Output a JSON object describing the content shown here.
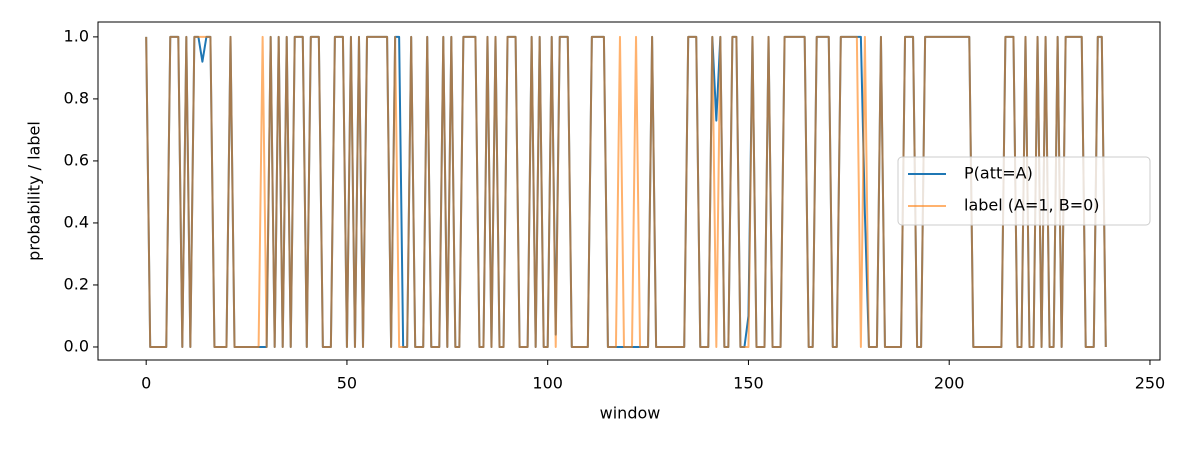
{
  "chart_data": {
    "type": "line",
    "xlabel": "window",
    "ylabel": "probability / label",
    "x": [
      0,
      1,
      2,
      3,
      4,
      5,
      6,
      7,
      8,
      9,
      10,
      11,
      12,
      13,
      14,
      15,
      16,
      17,
      18,
      19,
      20,
      21,
      22,
      23,
      24,
      25,
      26,
      27,
      28,
      29,
      30,
      31,
      32,
      33,
      34,
      35,
      36,
      37,
      38,
      39,
      40,
      41,
      42,
      43,
      44,
      45,
      46,
      47,
      48,
      49,
      50,
      51,
      52,
      53,
      54,
      55,
      56,
      57,
      58,
      59,
      60,
      61,
      62,
      63,
      64,
      65,
      66,
      67,
      68,
      69,
      70,
      71,
      72,
      73,
      74,
      75,
      76,
      77,
      78,
      79,
      80,
      81,
      82,
      83,
      84,
      85,
      86,
      87,
      88,
      89,
      90,
      91,
      92,
      93,
      94,
      95,
      96,
      97,
      98,
      99,
      100,
      101,
      102,
      103,
      104,
      105,
      106,
      107,
      108,
      109,
      110,
      111,
      112,
      113,
      114,
      115,
      116,
      117,
      118,
      119,
      120,
      121,
      122,
      123,
      124,
      125,
      126,
      127,
      128,
      129,
      130,
      131,
      132,
      133,
      134,
      135,
      136,
      137,
      138,
      139,
      140,
      141,
      142,
      143,
      144,
      145,
      146,
      147,
      148,
      149,
      150,
      151,
      152,
      153,
      154,
      155,
      156,
      157,
      158,
      159,
      160,
      161,
      162,
      163,
      164,
      165,
      166,
      167,
      168,
      169,
      170,
      171,
      172,
      173,
      174,
      175,
      176,
      177,
      178,
      179,
      180,
      181,
      182,
      183,
      184,
      185,
      186,
      187,
      188,
      189,
      190,
      191,
      192,
      193,
      194,
      195,
      196,
      197,
      198,
      199,
      200,
      201,
      202,
      203,
      204,
      205,
      206,
      207,
      208,
      209,
      210,
      211,
      212,
      213,
      214,
      215,
      216,
      217,
      218,
      219,
      220,
      221,
      222,
      223,
      224,
      225,
      226,
      227,
      228,
      229,
      230,
      231,
      232,
      233,
      234,
      235,
      236,
      237,
      238,
      239
    ],
    "series": [
      {
        "name": "P(att=A)",
        "color": "#1f77b4",
        "opacity": 1,
        "values": [
          1,
          0,
          0,
          0,
          0,
          0,
          1,
          1,
          1,
          0,
          1,
          0,
          1,
          1,
          0.92,
          1,
          1,
          0,
          0,
          0,
          0,
          1,
          0,
          0,
          0,
          0,
          0,
          0,
          0,
          0,
          0,
          1,
          0,
          1,
          0,
          1,
          0,
          1,
          1,
          1,
          0,
          1,
          1,
          1,
          0,
          0,
          0,
          1,
          1,
          1,
          0,
          1,
          0,
          1,
          0,
          1,
          1,
          1,
          1,
          1,
          1,
          0,
          1,
          1,
          0,
          0,
          1,
          0,
          0,
          0,
          1,
          0,
          0,
          0,
          1,
          0,
          1,
          0,
          0,
          1,
          1,
          1,
          1,
          0,
          0,
          1,
          0,
          1,
          0,
          0,
          1,
          1,
          1,
          0,
          0,
          0,
          1,
          0,
          1,
          0,
          0,
          1,
          0.04,
          1,
          1,
          1,
          0,
          0,
          0,
          0,
          0,
          1,
          1,
          1,
          1,
          0,
          0,
          0,
          0,
          0,
          0,
          0,
          0,
          0,
          0,
          0,
          1,
          0,
          0,
          0,
          0,
          0,
          0,
          0,
          0,
          1,
          1,
          1,
          0,
          0,
          0,
          1,
          0.73,
          1,
          0,
          0,
          1,
          1,
          0,
          0,
          0.1,
          1,
          0,
          0,
          0,
          1,
          0,
          0,
          0,
          1,
          1,
          1,
          1,
          1,
          1,
          0,
          0,
          1,
          1,
          1,
          1,
          0,
          0,
          1,
          1,
          1,
          1,
          1,
          1,
          0.43,
          0,
          0,
          0,
          1,
          0,
          0,
          0,
          0,
          0,
          1,
          1,
          1,
          0,
          0,
          1,
          1,
          1,
          1,
          1,
          1,
          1,
          1,
          1,
          1,
          1,
          1,
          0,
          0,
          0,
          0,
          0,
          0,
          0,
          0,
          1,
          1,
          1,
          0,
          0,
          1,
          0,
          0,
          1,
          0,
          1,
          0,
          0,
          1,
          0,
          1,
          1,
          1,
          1,
          1,
          0,
          0,
          0,
          1,
          1,
          0
        ]
      },
      {
        "name": "label (A=1, B=0)",
        "color": "#ff7f0e",
        "opacity": 0.6,
        "values": [
          1,
          0,
          0,
          0,
          0,
          0,
          1,
          1,
          1,
          0,
          1,
          0,
          1,
          1,
          1,
          1,
          1,
          0,
          0,
          0,
          0,
          1,
          0,
          0,
          0,
          0,
          0,
          0,
          0,
          1,
          0,
          1,
          0,
          1,
          0,
          1,
          0,
          1,
          1,
          1,
          0,
          1,
          1,
          1,
          0,
          0,
          0,
          1,
          1,
          1,
          0,
          1,
          0,
          1,
          0,
          1,
          1,
          1,
          1,
          1,
          1,
          0,
          1,
          0,
          0,
          0,
          1,
          0,
          0,
          0,
          1,
          0,
          0,
          0,
          1,
          0,
          1,
          0,
          0,
          1,
          1,
          1,
          1,
          0,
          0,
          1,
          0,
          1,
          0,
          0,
          1,
          1,
          1,
          0,
          0,
          0,
          1,
          0,
          1,
          0,
          0,
          1,
          0,
          1,
          1,
          1,
          0,
          0,
          0,
          0,
          0,
          1,
          1,
          1,
          1,
          0,
          0,
          0,
          1,
          0,
          0,
          0,
          1,
          0,
          0,
          0,
          1,
          0,
          0,
          0,
          0,
          0,
          0,
          0,
          0,
          1,
          1,
          1,
          0,
          0,
          0,
          1,
          0,
          1,
          0,
          0,
          1,
          1,
          0,
          0,
          0,
          1,
          0,
          0,
          0,
          1,
          0,
          0,
          0,
          1,
          1,
          1,
          1,
          1,
          1,
          0,
          0,
          1,
          1,
          1,
          1,
          0,
          0,
          1,
          1,
          1,
          1,
          1,
          0,
          1,
          0,
          0,
          0,
          1,
          0,
          0,
          0,
          0,
          0,
          1,
          1,
          1,
          0,
          0,
          1,
          1,
          1,
          1,
          1,
          1,
          1,
          1,
          1,
          1,
          1,
          1,
          0,
          0,
          0,
          0,
          0,
          0,
          0,
          0,
          1,
          1,
          1,
          0,
          0,
          1,
          0,
          0,
          1,
          0,
          1,
          0,
          0,
          1,
          0,
          1,
          1,
          1,
          1,
          1,
          0,
          0,
          0,
          1,
          1,
          0
        ]
      }
    ],
    "xlim": [
      -12,
      252.5
    ],
    "ylim": [
      -0.042,
      1.048
    ],
    "xticks": [
      0,
      50,
      100,
      150,
      200,
      250
    ],
    "yticks": [
      {
        "value": 0,
        "label": "0.0"
      },
      {
        "value": 0.2,
        "label": "0.2"
      },
      {
        "value": 0.4,
        "label": "0.4"
      },
      {
        "value": 0.6,
        "label": "0.6"
      },
      {
        "value": 0.8,
        "label": "0.8"
      },
      {
        "value": 1,
        "label": "1.0"
      }
    ],
    "legend": "center right"
  }
}
